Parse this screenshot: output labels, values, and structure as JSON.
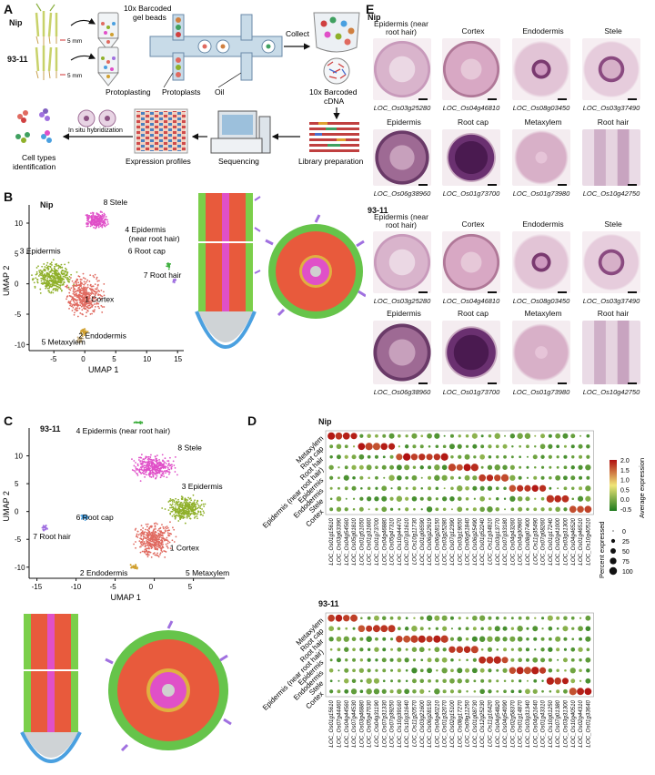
{
  "panels": {
    "A": {
      "letter": "A",
      "lines": [
        "Nip",
        "93-11"
      ],
      "scale": "5 mm",
      "steps": {
        "beads": "10x Barcoded gel beads",
        "protoplasting": "Protoplasting",
        "protoplasts": "Protoplasts",
        "oil": "Oil",
        "collect": "Collect",
        "cdna": "10x Barcoded cDNA",
        "library": "Library preparation",
        "sequencing": "Sequencing",
        "profiles": "Expression profiles",
        "insitu": "In situ hybridization",
        "celltypes": "Cell types identification"
      }
    },
    "B": {
      "letter": "B",
      "title": "Nip",
      "xlabel": "UMAP 1",
      "ylabel": "UMAP 2",
      "xticks": [
        "-5",
        "0",
        "5",
        "10",
        "15"
      ],
      "yticks": [
        "10",
        "5",
        "0",
        "-5",
        "-10"
      ],
      "clusters": [
        "8 Stele",
        "4 Epidermis (near root hair)",
        "3 Epidermis",
        "6 Root cap",
        "7 Root hair",
        "1 Cortex",
        "2 Endodermis",
        "5 Metaxylem"
      ]
    },
    "C": {
      "letter": "C",
      "title": "93-11",
      "xlabel": "UMAP 1",
      "ylabel": "UMAP 2",
      "xticks": [
        "-15",
        "-10",
        "-5",
        "0",
        "5"
      ],
      "yticks": [
        "10",
        "5",
        "0",
        "-5",
        "-10"
      ],
      "clusters": [
        "4 Epidermis (near root hair)",
        "8 Stele",
        "3 Epidermis",
        "6 Root cap",
        "7 Root hair",
        "1 Cortex",
        "2 Endodermis",
        "5 Metaxylem"
      ]
    },
    "D": {
      "letter": "D",
      "title_top": "Nip",
      "title_bottom": "93-11",
      "rows": [
        "Metaxylem",
        "Root cap",
        "Root hair",
        "Epidermis (near root hair)",
        "Epidermis",
        "Endodermis",
        "Stele",
        "Cortex"
      ],
      "genes_top": [
        "LOC_Os01g15610",
        "LOC_Os03g63390",
        "LOC_Os04g54560",
        "LOC_Os05g01810",
        "LOC_Os01g51050",
        "LOC_Os01g31660",
        "LOC_Os01g73700",
        "LOC_Os04g46880",
        "LOC_Os05g47310",
        "LOC_Os10g44470",
        "LOC_Os07g31610",
        "LOC_Os10g11730",
        "LOC_Os01g06590",
        "LOC_Os06g22919",
        "LOC_Os06g28150",
        "LOC_Os03g25280",
        "LOC_Os07g12390",
        "LOC_Os03g19050",
        "LOC_Os06g51840",
        "LOC_Os06g25490",
        "LOC_Os01g52240",
        "LOC_Os11g34810",
        "LOC_Os03g13770",
        "LOC_Os07g33180",
        "LOC_Os04g43260",
        "LOC_Os04g30960",
        "LOC_Os08g07400",
        "LOC_Os11g35490",
        "LOC_Os07g08260",
        "LOC_Os01g17240",
        "LOC_Os02g41000",
        "LOC_Os03g31300",
        "LOC_Os04g46520",
        "LOC_Os01g46510",
        "LOC_Os10g40510"
      ],
      "genes_bottom": [
        "LOC_Os01g15610",
        "LOC_Os07g44460",
        "LOC_Os04g44560",
        "LOC_Os07g44530",
        "LOC_Os03g46880",
        "LOC_Os05g47030",
        "LOC_Os04g31190",
        "LOC_Os07g31330",
        "LOC_Os07g39250",
        "LOC_Os10g39160",
        "LOC_Os10g31640",
        "LOC_Os11g20570",
        "LOC_Os03g21600",
        "LOC_Os06g28150",
        "LOC_Os04g40210",
        "LOC_Os01g32070",
        "LOC_Os02g15100",
        "LOC_Os08g17270",
        "LOC_Os09g11250",
        "LOC_Os01g08730",
        "LOC_Os12g25230",
        "LOC_Os11g16420",
        "LOC_Os04g54820",
        "LOC_Os04g54090",
        "LOC_Os02g58370",
        "LOC_Os01g14870",
        "LOC_Os03g31340",
        "LOC_Os04g51640",
        "LOC_Os01g43310",
        "LOC_Os10g01250",
        "LOC_Os07g01380",
        "LOC_Os03g31300",
        "LOC_Os10g40510",
        "LOC_Os02g44310",
        "LOC_Os01g33640"
      ],
      "legend_expr_title": "Average expression",
      "legend_expr_ticks": [
        "2.0",
        "1.5",
        "1.0",
        "0.5",
        "0.0",
        "-0.5"
      ],
      "legend_pct_title": "Percent expressed",
      "legend_pct_ticks": [
        "0",
        "25",
        "50",
        "75",
        "100"
      ]
    },
    "E": {
      "letter": "E",
      "nip": "Nip",
      "line2": "93-11",
      "tissues_row1": [
        "Epidermis (near root hair)",
        "Cortex",
        "Endodermis",
        "Stele"
      ],
      "genes_row1": [
        "LOC_Os03g25280",
        "LOC_Os04g46810",
        "LOC_Os08g03450",
        "LOC_Os03g37490"
      ],
      "tissues_row2": [
        "Epidermis",
        "Root cap",
        "Metaxylem",
        "Root hair"
      ],
      "genes_row2": [
        "LOC_Os06g38960",
        "LOC_Os01g73700",
        "LOC_Os01g73980",
        "LOC_Os10g42750"
      ]
    }
  },
  "colors": {
    "stele": "#e050c8",
    "epidermis": "#8fb02a",
    "rootcap": "#4aa0e0",
    "roothair": "#a070e0",
    "cortex": "#e06a60",
    "endodermis": "#d0a030",
    "metaxylem": "#c8b080",
    "epi_near": "#40b040",
    "high": "#b01010",
    "low": "#1e7a1e"
  }
}
